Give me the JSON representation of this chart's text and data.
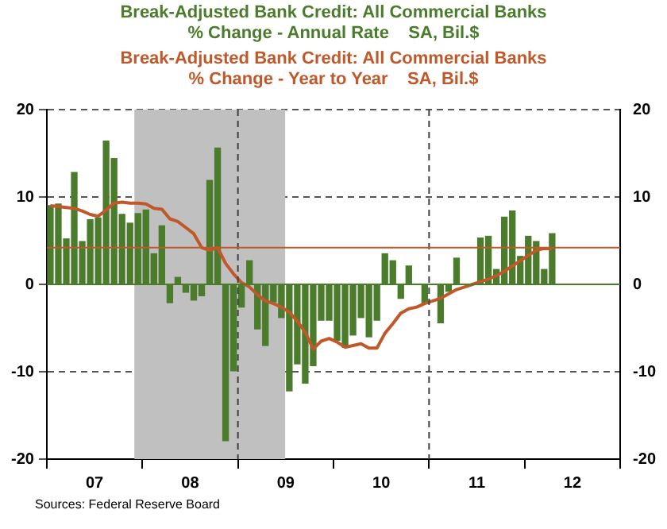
{
  "chart_data": {
    "type": "bar",
    "x": [
      "2007-01-15",
      "2007-02-15",
      "2007-03-15",
      "2007-04-15",
      "2007-05-15",
      "2007-06-15",
      "2007-07-15",
      "2007-08-15",
      "2007-09-15",
      "2007-10-15",
      "2007-11-15",
      "2007-12-15",
      "2008-01-15",
      "2008-02-15",
      "2008-03-15",
      "2008-04-15",
      "2008-05-15",
      "2008-06-15",
      "2008-07-15",
      "2008-08-15",
      "2008-09-15",
      "2008-10-15",
      "2008-11-15",
      "2008-12-15",
      "2009-01-15",
      "2009-02-15",
      "2009-03-15",
      "2009-04-15",
      "2009-05-15",
      "2009-06-15",
      "2009-07-15",
      "2009-08-15",
      "2009-09-15",
      "2009-10-15",
      "2009-11-15",
      "2009-12-15",
      "2010-01-15",
      "2010-02-15",
      "2010-03-15",
      "2010-04-15",
      "2010-05-15",
      "2010-06-15",
      "2010-07-15",
      "2010-08-15",
      "2010-09-15",
      "2010-10-15",
      "2010-11-15",
      "2010-12-15",
      "2011-01-15",
      "2011-02-15",
      "2011-03-15",
      "2011-04-15",
      "2011-05-15",
      "2011-06-15",
      "2011-07-15",
      "2011-08-15",
      "2011-09-15",
      "2011-10-15",
      "2011-11-15",
      "2011-12-15",
      "2012-01-15",
      "2012-02-15",
      "2012-03-15",
      "2012-04-15"
    ],
    "series": [
      {
        "name": "Break-Adjusted Bank Credit: All Commercial Banks\n% Change - Annual Rate    SA, Bil.$",
        "color": "#4a7c2c",
        "values": [
          9.0,
          9.2,
          5.2,
          12.8,
          4.9,
          7.4,
          7.6,
          16.4,
          14.4,
          8.0,
          7.0,
          8.1,
          8.5,
          3.5,
          6.7,
          -2.1,
          0.8,
          -0.9,
          -1.8,
          -1.3,
          11.9,
          15.6,
          -17.9,
          -9.9,
          -2.6,
          2.7,
          -5.1,
          -7.0,
          -2.0,
          -3.8,
          -12.2,
          -9.1,
          -11.3,
          -9.3,
          -4.1,
          -4.1,
          -6.4,
          -7.2,
          -5.8,
          -3.8,
          -6.0,
          -4.1,
          3.5,
          2.7,
          -1.6,
          2.1,
          0,
          -2.2,
          0,
          -4.4,
          -0.8,
          3.0,
          0,
          0,
          5.3,
          5.5,
          1.7,
          7.7,
          8.4,
          3.2,
          5.5,
          4.9,
          1.7,
          5.8
        ]
      },
      {
        "name": "Break-Adjusted Bank Credit: All Commercial Banks\n% Change - Year to Year    SA, Bil.$",
        "type": "line",
        "color": "#c0582a",
        "values": [
          9.0,
          8.9,
          8.8,
          8.7,
          8.4,
          8.0,
          7.8,
          8.5,
          9.3,
          9.4,
          9.3,
          9.3,
          9.2,
          8.7,
          8.6,
          7.5,
          7.2,
          6.5,
          5.8,
          4.2,
          3.9,
          4.2,
          2.4,
          1.2,
          0.2,
          -0.3,
          -1.2,
          -1.9,
          -2.2,
          -2.6,
          -3.2,
          -4.2,
          -5.5,
          -7.4,
          -6.5,
          -6.2,
          -6.6,
          -7.2,
          -7.0,
          -6.8,
          -7.3,
          -7.3,
          -5.6,
          -4.5,
          -3.3,
          -2.8,
          -2.6,
          -2.2,
          -1.9,
          -1.6,
          -1.1,
          -0.6,
          -0.3,
          0,
          0.3,
          0.6,
          1.0,
          1.5,
          2.1,
          2.7,
          3.3,
          3.9,
          4.1,
          4.1
        ]
      }
    ],
    "xlim": [
      "2007",
      "2013"
    ],
    "xticks": [
      {
        "value": "2007",
        "label": null
      },
      {
        "value": "2007-07-01",
        "label": "07"
      },
      {
        "value": "2008",
        "label": null
      },
      {
        "value": "2008-07-01",
        "label": "08"
      },
      {
        "value": "2009",
        "label": null
      },
      {
        "value": "2009-07-01",
        "label": "09"
      },
      {
        "value": "2010",
        "label": null
      },
      {
        "value": "2010-07-01",
        "label": "10"
      },
      {
        "value": "2011",
        "label": null
      },
      {
        "value": "2011-07-01",
        "label": "11"
      },
      {
        "value": "2012",
        "label": null
      },
      {
        "value": "2012-07-01",
        "label": "12"
      },
      {
        "value": "2013",
        "label": null
      }
    ],
    "ylim": [
      -20,
      20
    ],
    "yticks": [
      -20,
      -10,
      0,
      10,
      20
    ],
    "y2lim": [
      -20,
      20
    ],
    "y2ticks": [
      -20,
      -10,
      0,
      10,
      20
    ],
    "grid": "y",
    "legend": "top",
    "bands": [
      {
        "axis": "x",
        "from": "2007-12-01",
        "to": "2009-06-30",
        "color": "#c0c0c0"
      }
    ],
    "ref_lines": [
      {
        "axis": "x",
        "value": "2009",
        "color": "#404040",
        "line_style": "dashed"
      },
      {
        "axis": "x",
        "value": "2011",
        "color": "#404040",
        "line_style": "dashed"
      },
      {
        "axis": "y",
        "value": 4.2,
        "color": "#c0582a",
        "line_style": "solid"
      },
      {
        "axis": "y",
        "value": 0,
        "color": "#4a7c2c",
        "line_style": "solid"
      }
    ],
    "annotations": [
      "Sources: Federal Reserve Board"
    ]
  }
}
